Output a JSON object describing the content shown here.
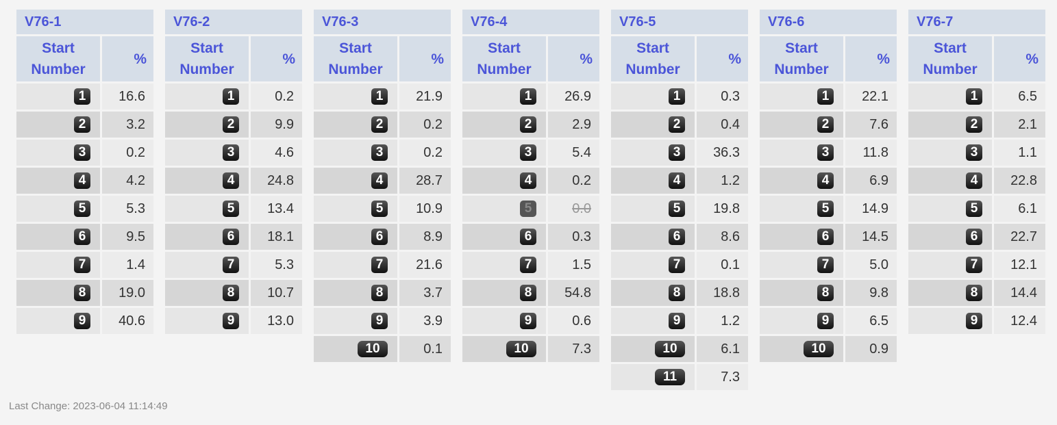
{
  "tables": [
    {
      "title": "V76-1",
      "headers": [
        "Start Number",
        "%"
      ],
      "rows": [
        [
          "1",
          "16.6"
        ],
        [
          "2",
          "3.2"
        ],
        [
          "3",
          "0.2"
        ],
        [
          "4",
          "4.2"
        ],
        [
          "5",
          "5.3"
        ],
        [
          "6",
          "9.5"
        ],
        [
          "7",
          "1.4"
        ],
        [
          "8",
          "19.0"
        ],
        [
          "9",
          "40.6"
        ]
      ],
      "scratched": []
    },
    {
      "title": "V76-2",
      "headers": [
        "Start Number",
        "%"
      ],
      "rows": [
        [
          "1",
          "0.2"
        ],
        [
          "2",
          "9.9"
        ],
        [
          "3",
          "4.6"
        ],
        [
          "4",
          "24.8"
        ],
        [
          "5",
          "13.4"
        ],
        [
          "6",
          "18.1"
        ],
        [
          "7",
          "5.3"
        ],
        [
          "8",
          "10.7"
        ],
        [
          "9",
          "13.0"
        ]
      ],
      "scratched": []
    },
    {
      "title": "V76-3",
      "headers": [
        "Start Number",
        "%"
      ],
      "rows": [
        [
          "1",
          "21.9"
        ],
        [
          "2",
          "0.2"
        ],
        [
          "3",
          "0.2"
        ],
        [
          "4",
          "28.7"
        ],
        [
          "5",
          "10.9"
        ],
        [
          "6",
          "8.9"
        ],
        [
          "7",
          "21.6"
        ],
        [
          "8",
          "3.7"
        ],
        [
          "9",
          "3.9"
        ],
        [
          "10",
          "0.1"
        ]
      ],
      "scratched": []
    },
    {
      "title": "V76-4",
      "headers": [
        "Start Number",
        "%"
      ],
      "rows": [
        [
          "1",
          "26.9"
        ],
        [
          "2",
          "2.9"
        ],
        [
          "3",
          "5.4"
        ],
        [
          "4",
          "0.2"
        ],
        [
          "5",
          "0.0"
        ],
        [
          "6",
          "0.3"
        ],
        [
          "7",
          "1.5"
        ],
        [
          "8",
          "54.8"
        ],
        [
          "9",
          "0.6"
        ],
        [
          "10",
          "7.3"
        ]
      ],
      "scratched": [
        4
      ]
    },
    {
      "title": "V76-5",
      "headers": [
        "Start Number",
        "%"
      ],
      "rows": [
        [
          "1",
          "0.3"
        ],
        [
          "2",
          "0.4"
        ],
        [
          "3",
          "36.3"
        ],
        [
          "4",
          "1.2"
        ],
        [
          "5",
          "19.8"
        ],
        [
          "6",
          "8.6"
        ],
        [
          "7",
          "0.1"
        ],
        [
          "8",
          "18.8"
        ],
        [
          "9",
          "1.2"
        ],
        [
          "10",
          "6.1"
        ],
        [
          "11",
          "7.3"
        ]
      ],
      "scratched": []
    },
    {
      "title": "V76-6",
      "headers": [
        "Start Number",
        "%"
      ],
      "rows": [
        [
          "1",
          "22.1"
        ],
        [
          "2",
          "7.6"
        ],
        [
          "3",
          "11.8"
        ],
        [
          "4",
          "6.9"
        ],
        [
          "5",
          "14.9"
        ],
        [
          "6",
          "14.5"
        ],
        [
          "7",
          "5.0"
        ],
        [
          "8",
          "9.8"
        ],
        [
          "9",
          "6.5"
        ],
        [
          "10",
          "0.9"
        ]
      ],
      "scratched": []
    },
    {
      "title": "V76-7",
      "headers": [
        "Start Number",
        "%"
      ],
      "rows": [
        [
          "1",
          "6.5"
        ],
        [
          "2",
          "2.1"
        ],
        [
          "3",
          "1.1"
        ],
        [
          "4",
          "22.8"
        ],
        [
          "5",
          "6.1"
        ],
        [
          "6",
          "22.7"
        ],
        [
          "7",
          "12.1"
        ],
        [
          "8",
          "14.4"
        ],
        [
          "9",
          "12.4"
        ]
      ],
      "scratched": []
    }
  ],
  "footer": "Last Change: 2023-06-04 11:14:49"
}
